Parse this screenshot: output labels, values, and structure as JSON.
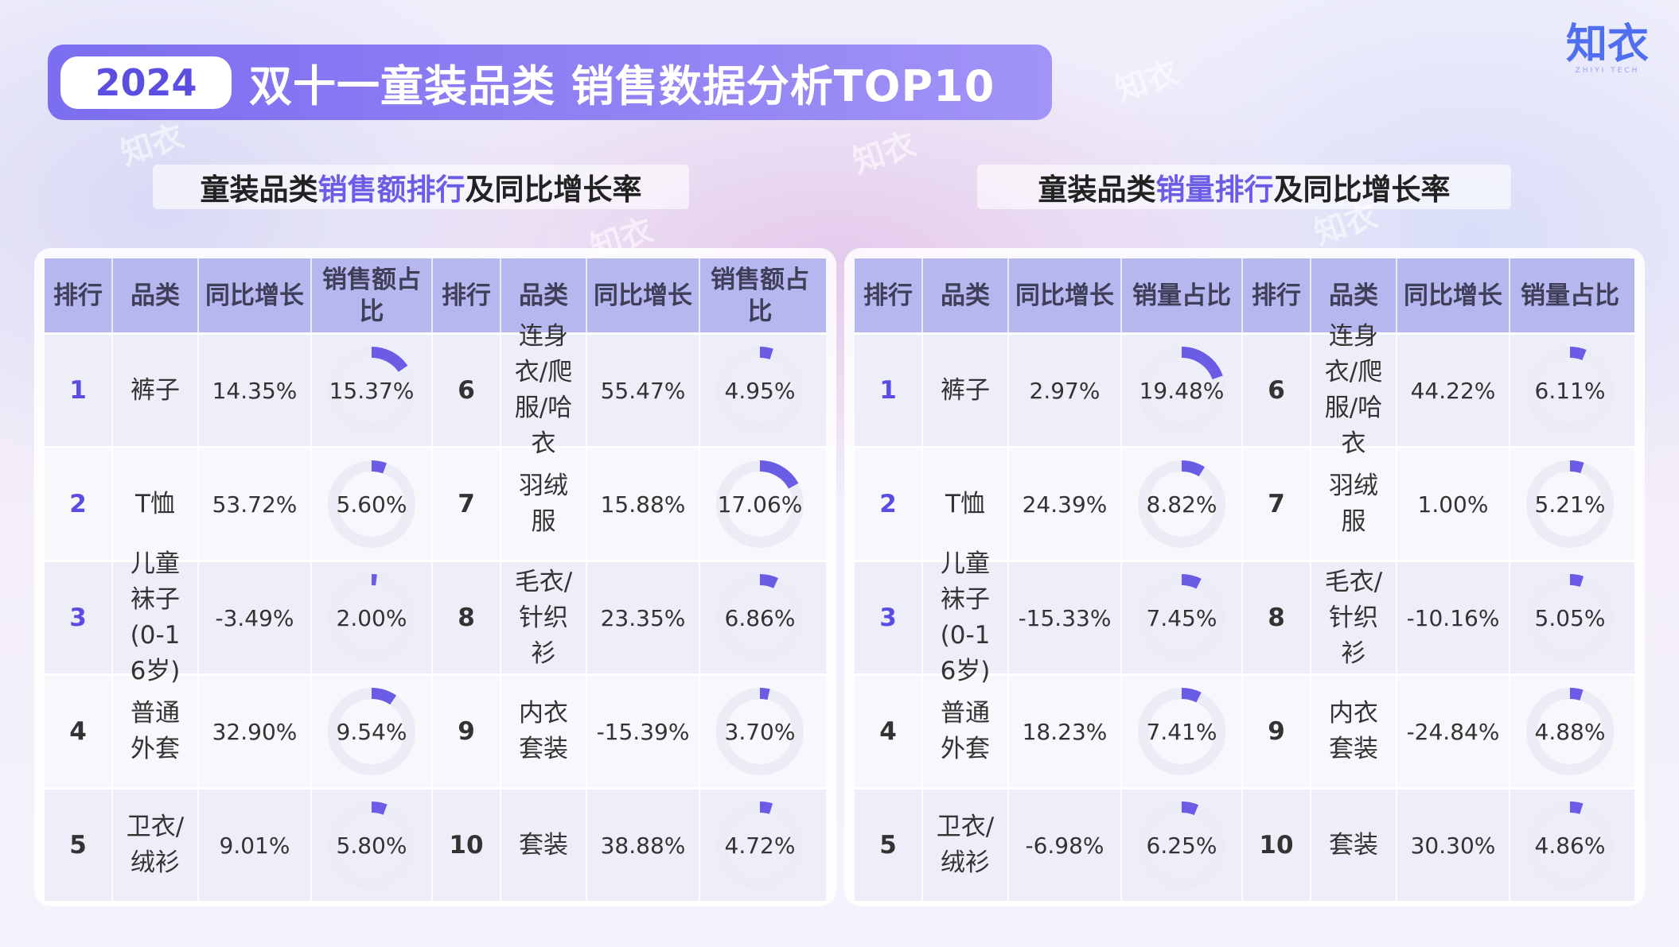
{
  "header": {
    "year": "2024",
    "title": "双十一童装品类 销售数据分析TOP10"
  },
  "logo": {
    "mark": "知衣",
    "sub": "ZHIYI TECH"
  },
  "left": {
    "subtitle_pre": "童装品类",
    "subtitle_hl": "销售额排行",
    "subtitle_post": "及同比增长率",
    "headers": [
      "排行",
      "品类",
      "同比增长",
      "销售额占比",
      "排行",
      "品类",
      "同比增长",
      "销售额占比"
    ],
    "rows": [
      {
        "r1": "1",
        "c1": "裤子",
        "y1": "14.35%",
        "s1": "15.37%",
        "v1": 15.37,
        "r2": "6",
        "c2": "连身衣/爬服/哈衣",
        "y2": "55.47%",
        "s2": "4.95%",
        "v2": 4.95
      },
      {
        "r1": "2",
        "c1": "T恤",
        "y1": "53.72%",
        "s1": "5.60%",
        "v1": 5.6,
        "r2": "7",
        "c2": "羽绒服",
        "y2": "15.88%",
        "s2": "17.06%",
        "v2": 17.06
      },
      {
        "r1": "3",
        "c1": "儿童袜子(0-16岁)",
        "y1": "-3.49%",
        "s1": "2.00%",
        "v1": 2.0,
        "r2": "8",
        "c2": "毛衣/针织衫",
        "y2": "23.35%",
        "s2": "6.86%",
        "v2": 6.86
      },
      {
        "r1": "4",
        "c1": "普通外套",
        "y1": "32.90%",
        "s1": "9.54%",
        "v1": 9.54,
        "r2": "9",
        "c2": "内衣套装",
        "y2": "-15.39%",
        "s2": "3.70%",
        "v2": 3.7
      },
      {
        "r1": "5",
        "c1": "卫衣/绒衫",
        "y1": "9.01%",
        "s1": "5.80%",
        "v1": 5.8,
        "r2": "10",
        "c2": "套装",
        "y2": "38.88%",
        "s2": "4.72%",
        "v2": 4.72
      }
    ]
  },
  "right": {
    "subtitle_pre": "童装品类",
    "subtitle_hl": "销量排行",
    "subtitle_post": "及同比增长率",
    "headers": [
      "排行",
      "品类",
      "同比增长",
      "销量占比",
      "排行",
      "品类",
      "同比增长",
      "销量占比"
    ],
    "rows": [
      {
        "r1": "1",
        "c1": "裤子",
        "y1": "2.97%",
        "s1": "19.48%",
        "v1": 19.48,
        "r2": "6",
        "c2": "连身衣/爬服/哈衣",
        "y2": "44.22%",
        "s2": "6.11%",
        "v2": 6.11
      },
      {
        "r1": "2",
        "c1": "T恤",
        "y1": "24.39%",
        "s1": "8.82%",
        "v1": 8.82,
        "r2": "7",
        "c2": "羽绒服",
        "y2": "1.00%",
        "s2": "5.21%",
        "v2": 5.21
      },
      {
        "r1": "3",
        "c1": "儿童袜子(0-16岁)",
        "y1": "-15.33%",
        "s1": "7.45%",
        "v1": 7.45,
        "r2": "8",
        "c2": "毛衣/针织衫",
        "y2": "-10.16%",
        "s2": "5.05%",
        "v2": 5.05
      },
      {
        "r1": "4",
        "c1": "普通外套",
        "y1": "18.23%",
        "s1": "7.41%",
        "v1": 7.41,
        "r2": "9",
        "c2": "内衣套装",
        "y2": "-24.84%",
        "s2": "4.88%",
        "v2": 4.88
      },
      {
        "r1": "5",
        "c1": "卫衣/绒衫",
        "y1": "-6.98%",
        "s1": "6.25%",
        "v1": 6.25,
        "r2": "10",
        "c2": "套装",
        "y2": "30.30%",
        "s2": "4.86%",
        "v2": 4.86
      }
    ]
  },
  "colors": {
    "accent": "#6b5ce6",
    "header_bg": "#b6b7ef",
    "donut_fill": "#6b5ce6",
    "donut_track": "#ececf6"
  }
}
